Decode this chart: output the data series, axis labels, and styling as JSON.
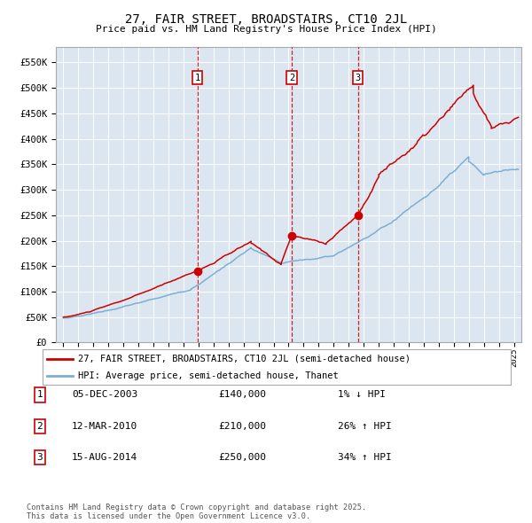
{
  "title": "27, FAIR STREET, BROADSTAIRS, CT10 2JL",
  "subtitle": "Price paid vs. HM Land Registry's House Price Index (HPI)",
  "plot_bg_color": "#dce6f0",
  "red_line_label": "27, FAIR STREET, BROADSTAIRS, CT10 2JL (semi-detached house)",
  "blue_line_label": "HPI: Average price, semi-detached house, Thanet",
  "transactions": [
    {
      "num": 1,
      "date": "05-DEC-2003",
      "price": 140000,
      "pct": "1%",
      "dir": "↓",
      "x": 2003.92
    },
    {
      "num": 2,
      "date": "12-MAR-2010",
      "price": 210000,
      "pct": "26%",
      "dir": "↑",
      "x": 2010.2
    },
    {
      "num": 3,
      "date": "15-AUG-2014",
      "price": 250000,
      "pct": "34%",
      "dir": "↑",
      "x": 2014.62
    }
  ],
  "footer": "Contains HM Land Registry data © Crown copyright and database right 2025.\nThis data is licensed under the Open Government Licence v3.0.",
  "ylim": [
    0,
    580000
  ],
  "xlim": [
    1994.5,
    2025.5
  ],
  "yticks": [
    0,
    50000,
    100000,
    150000,
    200000,
    250000,
    300000,
    350000,
    400000,
    450000,
    500000,
    550000
  ],
  "ytick_labels": [
    "£0",
    "£50K",
    "£100K",
    "£150K",
    "£200K",
    "£250K",
    "£300K",
    "£350K",
    "£400K",
    "£450K",
    "£500K",
    "£550K"
  ],
  "xticks": [
    1995,
    1996,
    1997,
    1998,
    1999,
    2000,
    2001,
    2002,
    2003,
    2004,
    2005,
    2006,
    2007,
    2008,
    2009,
    2010,
    2011,
    2012,
    2013,
    2014,
    2015,
    2016,
    2017,
    2018,
    2019,
    2020,
    2021,
    2022,
    2023,
    2024,
    2025
  ]
}
